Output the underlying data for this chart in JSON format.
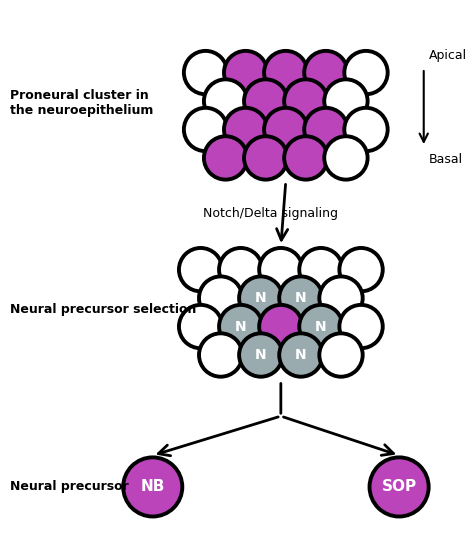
{
  "bg_color": "#ffffff",
  "purple": "#bb44bb",
  "gray": "#9aabb0",
  "white_fill": "#ffffff",
  "black": "#000000",
  "circle_lw": 2.8,
  "top_cluster_label": "Proneural cluster in\nthe neuroepithelium",
  "mid_cluster_label": "Neural precursor selection",
  "bottom_label": "Neural precursor",
  "apical_label": "Apical",
  "basal_label": "Basal",
  "signal_label": "Notch/Delta signaling",
  "nb_label": "NB",
  "sop_label": "SOP",
  "n_label": "N",
  "figsize": [
    4.74,
    5.6
  ],
  "dpi": 100
}
